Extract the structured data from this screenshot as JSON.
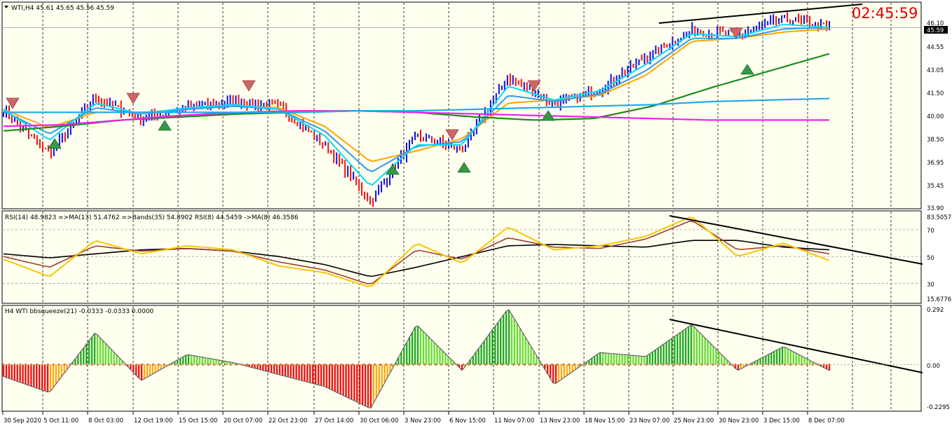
{
  "colors": {
    "background": "#fffff0",
    "bull": "#1010d8",
    "bear": "#ee1111",
    "ema_fast": "#00dcff",
    "ema_mid": "#ffa500",
    "ma_blue": "#3399ee",
    "ma_green": "#1a8c1a",
    "ma_cyan": "#22aaee",
    "ma_magenta": "#ee22ee",
    "ma_orange_slow": "#f0a060",
    "rsi_main": "#f5c800",
    "rsi_ma": "#a04030",
    "rsi_bands": "#000000",
    "hist_green": "#22aa22",
    "hist_lime": "#66dd33",
    "hist_red": "#ee1111",
    "hist_orange": "#ffaa11",
    "trendline": "#000000",
    "clock": "#e00000"
  },
  "price_panel": {
    "header": "WTI,H4  45.61 45.65 45.56 45.59",
    "clock": "02:45:59",
    "current_price": "45.59",
    "y_ticks": [
      "46.10",
      "44.55",
      "43.05",
      "41.50",
      "40.00",
      "38.50",
      "36.95",
      "35.45",
      "33.90"
    ],
    "icons": [
      "dropdown-triangle-icon",
      "sell-arrow-icon",
      "buy-arrow-icon"
    ]
  },
  "rsi_panel": {
    "header": "RSI(14) 48.9823  =>MA(13) 51.4762  =>Bands(35) 54.8902  RSI(8) 44.5459  ->MA(8) 46.3586",
    "y_ticks": [
      "83.5057",
      "70",
      "50",
      "30",
      "15.6776"
    ]
  },
  "squeeze_panel": {
    "header": "H4 WTI bbsqueeze(21) -0.0333 -0.0333 0.0000",
    "y_ticks": [
      "0.292",
      "0.00",
      "-0.2295"
    ],
    "zero_box": "0.00"
  },
  "x_axis": {
    "labels": [
      "30 Sep 2020",
      "5 Oct 11:00",
      "8 Oct 03:00",
      "12 Oct 19:00",
      "15 Oct 15:00",
      "20 Oct 07:00",
      "22 Oct 23:00",
      "27 Oct 14:00",
      "30 Oct 06:00",
      "3 Nov 23:00",
      "6 Nov 15:00",
      "11 Nov 07:00",
      "13 Nov 23:00",
      "18 Nov 15:00",
      "23 Nov 07:00",
      "25 Nov 23:00",
      "30 Nov 23:00",
      "3 Dec 15:00",
      "8 Dec 07:00"
    ]
  },
  "chart_data": [
    {
      "type": "bar",
      "title": "WTI,H4",
      "ylim": [
        33.9,
        47.2
      ],
      "x": [
        "30 Sep 2020",
        "5 Oct 11:00",
        "8 Oct 03:00",
        "12 Oct 19:00",
        "15 Oct 15:00",
        "20 Oct 07:00",
        "22 Oct 23:00",
        "27 Oct 14:00",
        "30 Oct 06:00",
        "3 Nov 23:00",
        "6 Nov 15:00",
        "11 Nov 07:00",
        "13 Nov 23:00",
        "18 Nov 15:00",
        "23 Nov 07:00",
        "25 Nov 23:00",
        "30 Nov 23:00",
        "3 Dec 15:00",
        "8 Dec 07:00"
      ],
      "price_path": [
        40.2,
        37.4,
        41.0,
        39.7,
        40.4,
        40.8,
        40.5,
        38.0,
        34.3,
        38.6,
        37.7,
        42.4,
        40.6,
        41.6,
        43.7,
        45.4,
        45.1,
        46.2,
        45.6
      ],
      "ema_fast": [
        40.3,
        38.3,
        40.7,
        40.0,
        40.4,
        40.6,
        40.3,
        38.6,
        35.3,
        38.0,
        38.0,
        41.8,
        40.9,
        41.5,
        43.2,
        45.2,
        45.0,
        45.8,
        45.6
      ],
      "ema_blue": [
        40.2,
        38.7,
        40.4,
        40.0,
        40.3,
        40.5,
        40.3,
        38.9,
        36.2,
        37.9,
        38.2,
        41.2,
        40.8,
        41.3,
        42.8,
        44.9,
        44.9,
        45.5,
        45.6
      ],
      "ma_orange": [
        40.3,
        39.1,
        40.1,
        40.1,
        40.3,
        40.5,
        40.4,
        39.2,
        36.9,
        37.6,
        38.4,
        40.7,
        40.9,
        41.2,
        42.5,
        44.7,
        44.9,
        45.3,
        45.5
      ]
    },
    {
      "type": "line",
      "title": "RSI(14)",
      "ylim": [
        15.6776,
        83.5057
      ],
      "reference_lines": [
        70,
        50,
        30
      ],
      "series": [
        {
          "name": "RSI(14)",
          "values": [
            48,
            35,
            62,
            52,
            58,
            55,
            43,
            38,
            27,
            60,
            45,
            72,
            55,
            58,
            65,
            80,
            50,
            60,
            47
          ]
        },
        {
          "name": "MA(13)",
          "values": [
            50,
            42,
            58,
            54,
            56,
            54,
            46,
            40,
            29,
            55,
            48,
            64,
            57,
            56,
            63,
            77,
            55,
            58,
            52
          ]
        },
        {
          "name": "Bands(35)",
          "values": [
            52,
            49,
            52,
            55,
            56,
            54,
            50,
            44,
            35,
            42,
            50,
            58,
            59,
            58,
            57,
            62,
            62,
            57,
            55
          ]
        }
      ]
    },
    {
      "type": "bar",
      "title": "bbsqueeze(21)",
      "ylim": [
        -0.2295,
        0.292
      ],
      "x": [
        "30 Sep 2020",
        "5 Oct 11:00",
        "8 Oct 03:00",
        "12 Oct 19:00",
        "15 Oct 15:00",
        "20 Oct 07:00",
        "22 Oct 23:00",
        "27 Oct 14:00",
        "30 Oct 06:00",
        "3 Nov 23:00",
        "6 Nov 15:00",
        "11 Nov 07:00",
        "13 Nov 23:00",
        "18 Nov 15:00",
        "23 Nov 07:00",
        "25 Nov 23:00",
        "30 Nov 23:00",
        "3 Dec 15:00",
        "8 Dec 07:00"
      ],
      "values": [
        -0.06,
        -0.14,
        0.16,
        -0.08,
        0.05,
        0.01,
        -0.05,
        -0.11,
        -0.22,
        0.2,
        -0.03,
        0.28,
        -0.1,
        0.06,
        0.04,
        0.2,
        -0.03,
        0.09,
        -0.03
      ]
    }
  ]
}
